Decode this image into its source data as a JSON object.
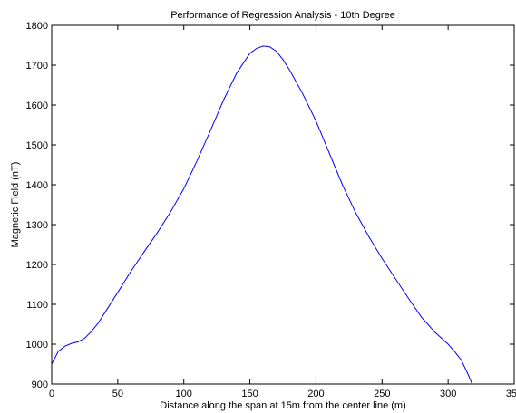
{
  "chart_data": {
    "type": "line",
    "title": "Performance of Regression Analysis - 10th Degree",
    "xlabel": "Distance along the span at 15m from the center line (m)",
    "ylabel": "Magnetic Field (nT)",
    "xlim": [
      0,
      350
    ],
    "ylim": [
      900,
      1800
    ],
    "xticks": [
      0,
      50,
      100,
      150,
      200,
      250,
      300,
      350
    ],
    "yticks": [
      900,
      1000,
      1100,
      1200,
      1300,
      1400,
      1500,
      1600,
      1700,
      1800
    ],
    "grid": false,
    "line_color": "#0000ff",
    "series": [
      {
        "x": [
          0,
          5,
          10,
          15,
          20,
          25,
          30,
          35,
          40,
          50,
          60,
          70,
          80,
          90,
          100,
          110,
          120,
          130,
          140,
          150,
          155,
          160,
          165,
          170,
          175,
          180,
          190,
          200,
          210,
          220,
          230,
          240,
          250,
          260,
          270,
          280,
          290,
          300,
          305,
          310,
          315,
          320
        ],
        "y": [
          950,
          982,
          995,
          1002,
          1006,
          1015,
          1032,
          1052,
          1078,
          1130,
          1183,
          1232,
          1280,
          1332,
          1390,
          1460,
          1535,
          1612,
          1680,
          1730,
          1742,
          1748,
          1746,
          1735,
          1714,
          1688,
          1628,
          1560,
          1480,
          1400,
          1330,
          1270,
          1215,
          1165,
          1115,
          1067,
          1030,
          1000,
          981,
          960,
          925,
          886
        ]
      }
    ]
  }
}
